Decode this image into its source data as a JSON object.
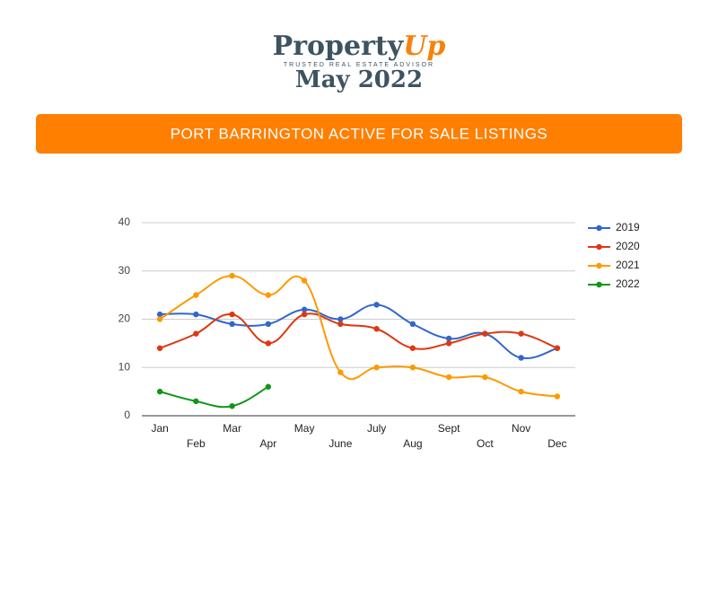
{
  "header": {
    "brand": "Property",
    "brand_accent": "Up",
    "tagline": "TRUSTED REAL ESTATE ADVISOR",
    "date": "May 2022",
    "banner": "PORT BARRINGTON ACTIVE FOR SALE LISTINGS"
  },
  "chart_data": {
    "type": "line",
    "categories": [
      "Jan",
      "Feb",
      "Mar",
      "Apr",
      "May",
      "June",
      "July",
      "Aug",
      "Sept",
      "Oct",
      "Nov",
      "Dec"
    ],
    "series": [
      {
        "name": "2019",
        "color": "#3366cc",
        "values": [
          21,
          21,
          19,
          19,
          22,
          20,
          23,
          19,
          16,
          17,
          12,
          14
        ]
      },
      {
        "name": "2020",
        "color": "#dc3912",
        "values": [
          14,
          17,
          21,
          15,
          21,
          19,
          18,
          14,
          15,
          17,
          17,
          14
        ]
      },
      {
        "name": "2021",
        "color": "#ff9900",
        "values": [
          20,
          25,
          29,
          25,
          28,
          9,
          10,
          10,
          8,
          8,
          5,
          4
        ]
      },
      {
        "name": "2022",
        "color": "#109618",
        "values": [
          5,
          3,
          2,
          6,
          null,
          null,
          null,
          null,
          null,
          null,
          null,
          null
        ]
      }
    ],
    "ylim": [
      0,
      40
    ],
    "yticks": [
      0,
      10,
      20,
      30,
      40
    ],
    "grid": true,
    "legend": "right"
  }
}
